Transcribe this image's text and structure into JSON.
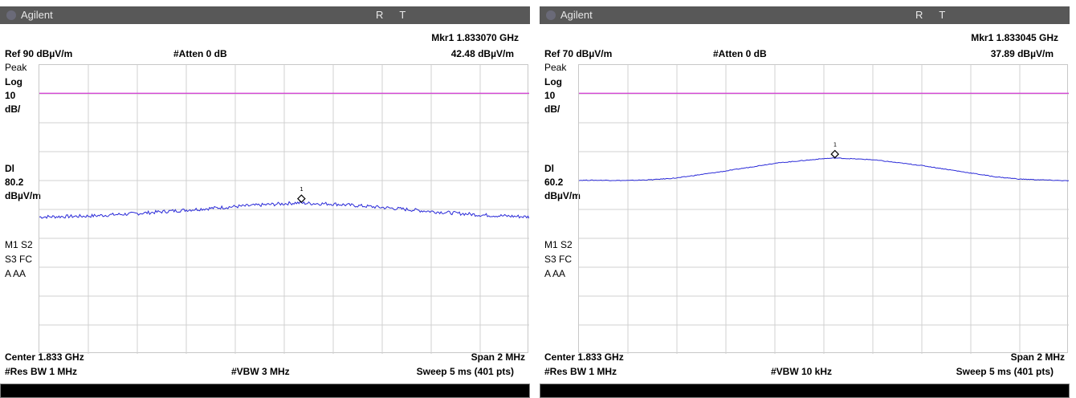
{
  "panels": [
    {
      "brand": "Agilent",
      "status_r": "R",
      "status_t": "T",
      "marker_label": "Mkr1  1.833070 GHz",
      "marker_value": "42.48 dBµV/m",
      "ref": "Ref 90 dBµV/m",
      "atten": "#Atten 0 dB",
      "det": "Peak",
      "scale_log": "Log",
      "scale_num": "10",
      "scale_unit": "dB/",
      "dl": "Dl",
      "dl_value": "80.2",
      "dl_unit": "dBµV/m",
      "mode_line1": "M1  S2",
      "mode_line2": "S3  FC",
      "mode_line3": "A   AA",
      "center": "Center 1.833 GHz",
      "span": "Span 2 MHz",
      "res_bw": "#Res BW 1 MHz",
      "vbw": "#VBW 3 MHz",
      "sweep": "Sweep 5 ms (401 pts)",
      "marker_number": "1",
      "colors": {
        "trace": "#2a2ad8",
        "display_line": "#d43ad4"
      }
    },
    {
      "brand": "Agilent",
      "status_r": "R",
      "status_t": "T",
      "marker_label": "Mkr1  1.833045 GHz",
      "marker_value": "37.89 dBµV/m",
      "ref": "Ref 70 dBµV/m",
      "atten": "#Atten 0 dB",
      "det": "Peak",
      "scale_log": "Log",
      "scale_num": "10",
      "scale_unit": "dB/",
      "dl": "Dl",
      "dl_value": "60.2",
      "dl_unit": "dBµV/m",
      "mode_line1": "M1  S2",
      "mode_line2": "S3  FC",
      "mode_line3": "A   AA",
      "center": "Center 1.833 GHz",
      "span": "Span 2 MHz",
      "res_bw": "#Res BW 1 MHz",
      "vbw": "#VBW 10 kHz",
      "sweep": "Sweep 5 ms (401 pts)",
      "marker_number": "1",
      "colors": {
        "trace": "#2a2ad8",
        "display_line": "#d43ad4"
      }
    }
  ],
  "chart_data": [
    {
      "type": "line",
      "xlabel": "",
      "ylabel": "",
      "xlim": [
        1.832,
        1.834
      ],
      "ylim": [
        -10,
        90
      ],
      "grid": true,
      "display_line": 80.2,
      "noise": 0.6,
      "marker": {
        "x": 1.83307,
        "y": 42.48,
        "label": "1"
      },
      "series": [
        {
          "x": [
            1.832,
            1.8322,
            1.8324,
            1.8326,
            1.8328,
            1.833,
            1.83305,
            1.8331,
            1.8332,
            1.8334,
            1.8336,
            1.8338,
            1.834
          ],
          "y": [
            37.4,
            37.7,
            38.6,
            39.8,
            41.0,
            42.0,
            42.3,
            42.1,
            41.9,
            40.7,
            39.3,
            38.1,
            37.4
          ]
        }
      ]
    },
    {
      "type": "line",
      "xlabel": "",
      "ylabel": "",
      "xlim": [
        1.832,
        1.834
      ],
      "ylim": [
        -30,
        70
      ],
      "grid": true,
      "display_line": 60.2,
      "noise": 0.12,
      "marker": {
        "x": 1.833045,
        "y": 37.89,
        "label": "1"
      },
      "series": [
        {
          "x": [
            1.832,
            1.8321,
            1.8322,
            1.8323,
            1.8324,
            1.8326,
            1.8328,
            1.833,
            1.83305,
            1.8331,
            1.8332,
            1.8334,
            1.8336,
            1.8337,
            1.8338,
            1.834
          ],
          "y": [
            30.1,
            30.1,
            30.0,
            30.3,
            30.9,
            33.3,
            36.0,
            37.6,
            37.8,
            37.6,
            37.2,
            35.2,
            32.6,
            31.3,
            30.5,
            29.9
          ]
        }
      ]
    }
  ]
}
